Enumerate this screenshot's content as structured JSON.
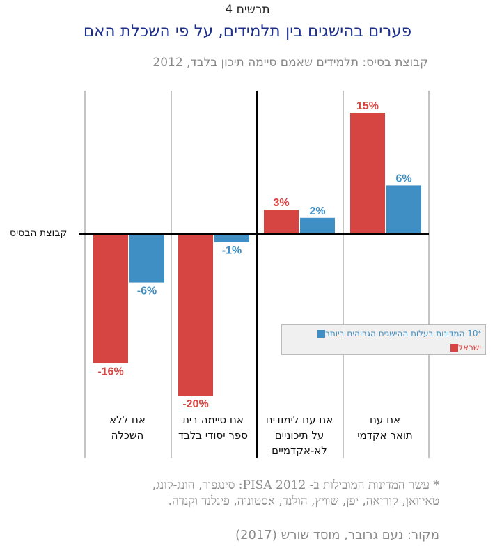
{
  "figure_label": "תרשים 4",
  "title": "פערים בהישגים בין תלמידים, על פי השכלת האם",
  "subtitle": "קבוצת בסיס: תלמידים שאמם סיימה תיכון בלבד, 2012",
  "baseline_label": "קבוצת הבסיס",
  "colors": {
    "israel": "#d64541",
    "top10": "#3f8fc4",
    "title": "#1c2f8c"
  },
  "legend": {
    "top10": "10 המדינות בעלות ההישגים הגבוהים ביותר",
    "top10_mark": "*",
    "israel": "ישראל"
  },
  "categories": [
    {
      "line1": "אם עם",
      "line2": "תואר אקדמי",
      "line3": ""
    },
    {
      "line1": "אם עם לימודים",
      "line2": "על תיכוניים",
      "line3": "לא-אקדמיים"
    },
    {
      "line1": "אם סיימה בית",
      "line2": "ספר יסודי בלבד",
      "line3": ""
    },
    {
      "line1": "אם ללא",
      "line2": "השכלה",
      "line3": ""
    }
  ],
  "chart_data": {
    "type": "bar",
    "categories": [
      "אם עם תואר אקדמי",
      "אם עם לימודים על תיכוניים לא-אקדמיים",
      "אם סיימה בית ספר יסודי בלבד",
      "אם ללא השכלה"
    ],
    "series": [
      {
        "name": "ישראל",
        "values": [
          15,
          3,
          -20,
          -16
        ]
      },
      {
        "name": "10 המדינות בעלות ההישגים הגבוהים ביותר",
        "values": [
          6,
          2,
          -1,
          -6
        ]
      }
    ],
    "labels": [
      [
        "15%",
        "3%",
        "-20%",
        "-16%"
      ],
      [
        "6%",
        "2%",
        "-1%",
        "-6%"
      ]
    ],
    "ylim": [
      -20,
      15
    ]
  },
  "footnote": {
    "line1": "* עשר המדינות המובילות ב- 2012 PISA: סינגפור, הונג-קונג,",
    "line2": "טאיוואן, קוריאה, יפן, שוויץ, הולנד, אסטוניה, פינלנד וקנדה."
  },
  "source": "מקור: נעם גרובר, מוסד שורש (2017)"
}
